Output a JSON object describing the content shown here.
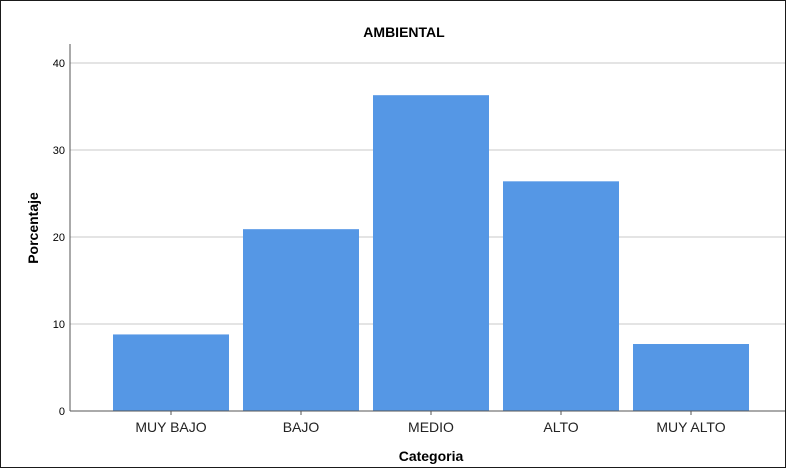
{
  "chart_data": {
    "type": "bar",
    "title": "AMBIENTAL",
    "xlabel": "Categoria",
    "ylabel": "Porcentaje",
    "categories": [
      "MUY BAJO",
      "BAJO",
      "MEDIO",
      "ALTO",
      "MUY ALTO"
    ],
    "values": [
      8.8,
      20.9,
      36.3,
      26.4,
      7.7
    ],
    "ylim": [
      0,
      40
    ],
    "yticks": [
      "0",
      "10",
      "20",
      "30",
      "40"
    ],
    "grid": true,
    "bar_color": "#5597e5",
    "grid_color": "#c8c8c8"
  }
}
